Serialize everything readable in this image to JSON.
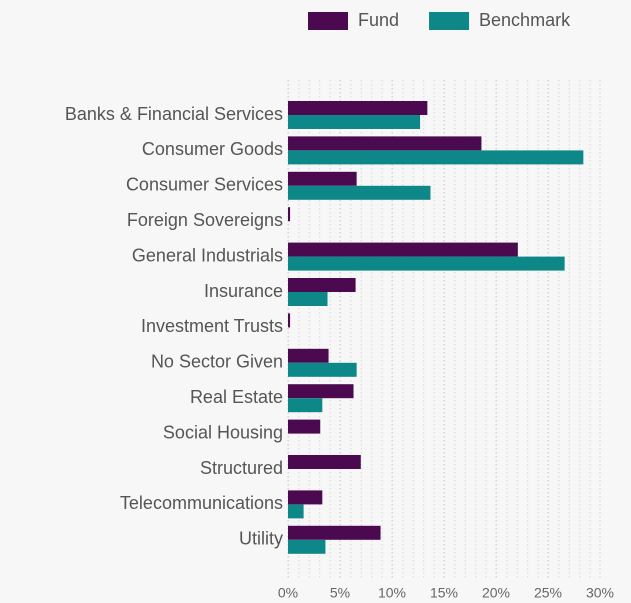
{
  "chart_data": {
    "type": "barh",
    "categories": [
      "Banks & Financial Services",
      "Consumer Goods",
      "Consumer Services",
      "Foreign Sovereigns",
      "General Industrials",
      "Insurance",
      "Investment Trusts",
      "No Sector Given",
      "Real Estate",
      "Social Housing",
      "Structured",
      "Telecommunications",
      "Utility"
    ],
    "series": [
      {
        "name": "Fund",
        "color": "#4b0a50",
        "values": [
          13.4,
          18.6,
          6.6,
          0.2,
          22.1,
          6.5,
          0.2,
          3.9,
          6.3,
          3.1,
          7.0,
          3.3,
          8.9
        ]
      },
      {
        "name": "Benchmark",
        "color": "#0e8789",
        "values": [
          12.7,
          28.4,
          13.7,
          0,
          26.6,
          3.8,
          0,
          6.6,
          3.3,
          0,
          0,
          1.5,
          3.6
        ]
      }
    ],
    "xlim": [
      0,
      30
    ],
    "xticks": [
      {
        "value": 0,
        "label": "0%"
      },
      {
        "value": 5,
        "label": "5%"
      },
      {
        "value": 10,
        "label": "10%"
      },
      {
        "value": 15,
        "label": "15%"
      },
      {
        "value": 20,
        "label": "20%"
      },
      {
        "value": 25,
        "label": "25%"
      },
      {
        "value": 30,
        "label": "30%"
      }
    ],
    "grid": true,
    "legend": "top"
  }
}
